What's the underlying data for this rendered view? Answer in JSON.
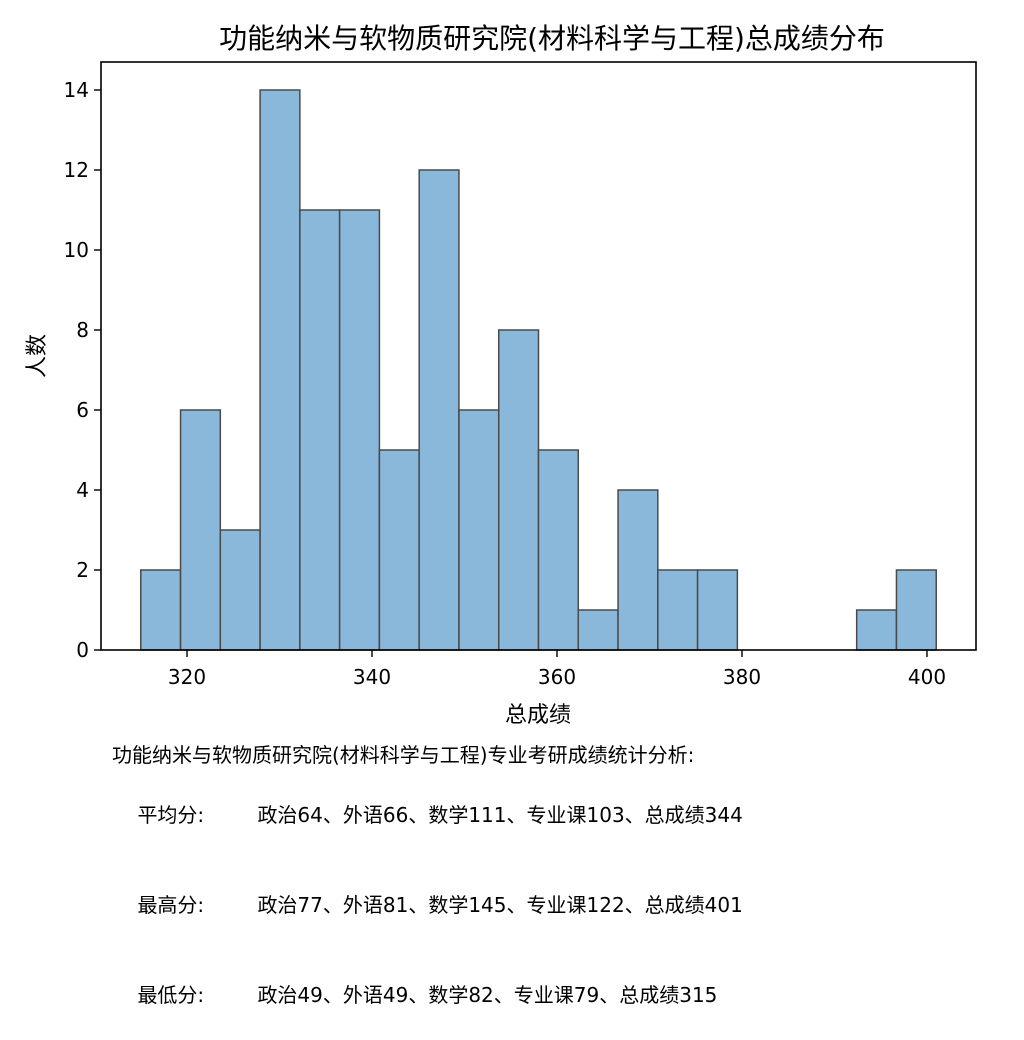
{
  "chart_data": {
    "type": "bar",
    "title": "功能纳米与软物质研究院(材料科学与工程)总成绩分布",
    "xlabel": "总成绩",
    "ylabel": "人数",
    "x_range": [
      315,
      401
    ],
    "xlim": [
      310.7,
      405.3
    ],
    "ylim": [
      0,
      14.7
    ],
    "xticks": [
      320,
      340,
      360,
      380,
      400
    ],
    "yticks": [
      0,
      2,
      4,
      6,
      8,
      10,
      12,
      14
    ],
    "bar_color": "#8ab8da",
    "edge_color": "#4a4a4a",
    "grid": false,
    "counts": [
      2,
      6,
      3,
      14,
      11,
      11,
      5,
      12,
      6,
      8,
      5,
      1,
      4,
      2,
      2,
      0,
      0,
      0,
      1,
      2
    ]
  },
  "notes": {
    "heading": "功能纳米与软物质研究院(材料科学与工程)专业考研成绩统计分析:",
    "rows": [
      {
        "label": "平均分:",
        "values": "政治64、外语66、数学111、专业课103、总成绩344"
      },
      {
        "label": "最高分:",
        "values": "政治77、外语81、数学145、专业课122、总成绩401"
      },
      {
        "label": "最低分:",
        "values": "政治49、外语49、数学82、专业课79、总成绩315"
      }
    ]
  }
}
